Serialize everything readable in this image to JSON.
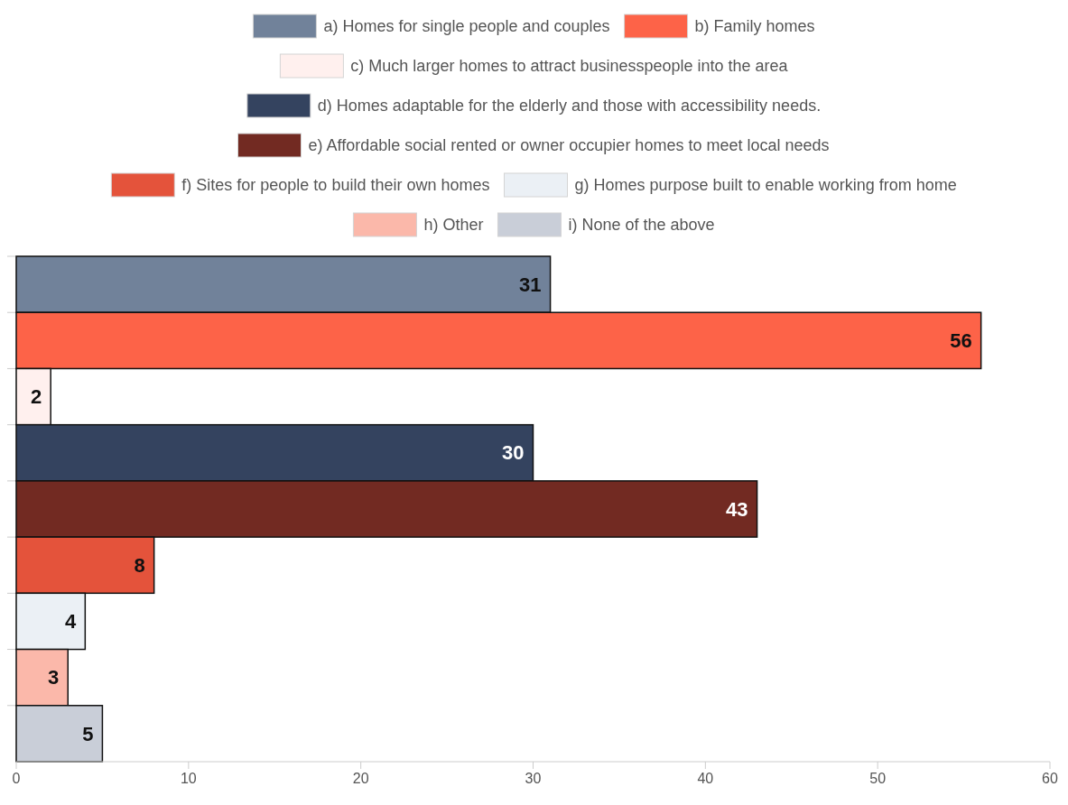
{
  "chart_data": {
    "type": "bar",
    "orientation": "horizontal",
    "categories": [
      null
    ],
    "series": [
      {
        "name": "a) Homes for single people and couples",
        "color": "#71829a",
        "values": [
          31
        ]
      },
      {
        "name": "b) Family homes",
        "color": "#fd6348",
        "values": [
          56
        ]
      },
      {
        "name": "c) Much larger homes to attract businesspeople into the area",
        "color": "#fff0ee",
        "values": [
          2
        ]
      },
      {
        "name": "d) Homes adaptable for the elderly and those with accessibility needs.",
        "color": "#34435f",
        "values": [
          30
        ]
      },
      {
        "name": "e) Affordable social rented or owner occupier homes to meet local needs",
        "color": "#722a22",
        "values": [
          43
        ]
      },
      {
        "name": "f) Sites for people to build their own homes",
        "color": "#e4533b",
        "values": [
          8
        ]
      },
      {
        "name": "g) Homes purpose built to enable working from home",
        "color": "#ebf0f5",
        "values": [
          4
        ]
      },
      {
        "name": "h) Other",
        "color": "#fbb8aa",
        "values": [
          3
        ]
      },
      {
        "name": "i) None of the above",
        "color": "#c9ced8",
        "values": [
          5
        ]
      }
    ],
    "xlim": [
      0,
      60
    ],
    "xticks": [
      0,
      10,
      20,
      30,
      40,
      50,
      60
    ],
    "data_labels": true,
    "legend": "top"
  }
}
